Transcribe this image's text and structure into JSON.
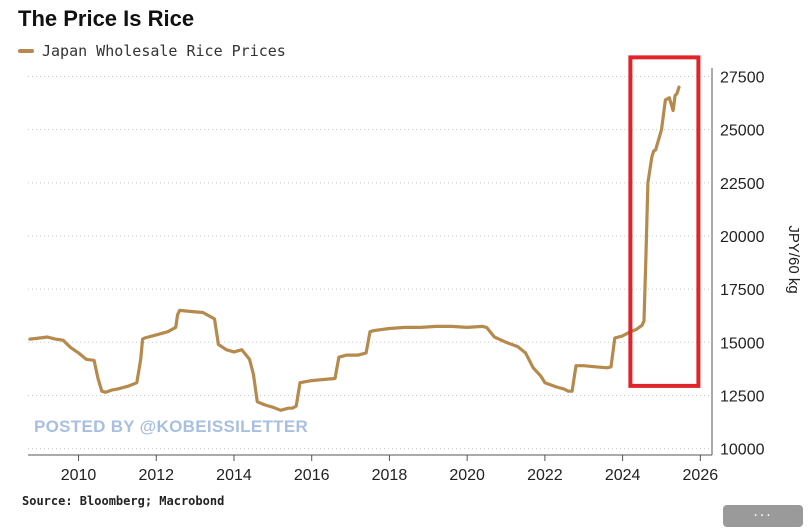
{
  "chart_data": {
    "type": "line",
    "title": "The Price Is Rice",
    "xlabel": "",
    "ylabel": "JPY/60 kg",
    "xlim": [
      2008.7,
      2026.3
    ],
    "ylim": [
      9700,
      27900
    ],
    "grid": true,
    "legend_position": "top-left",
    "x_ticks": [
      2010,
      2012,
      2014,
      2016,
      2018,
      2020,
      2022,
      2024,
      2026
    ],
    "y_ticks": [
      10000,
      12500,
      15000,
      17500,
      20000,
      22500,
      25000,
      27500
    ],
    "series": [
      {
        "name": "Japan Wholesale Rice Prices",
        "color": "#b58a4c",
        "x": [
          2008.75,
          2009.0,
          2009.2,
          2009.4,
          2009.6,
          2009.8,
          2010.0,
          2010.2,
          2010.4,
          2010.5,
          2010.6,
          2010.7,
          2010.85,
          2011.0,
          2011.3,
          2011.5,
          2011.6,
          2011.65,
          2011.7,
          2012.0,
          2012.3,
          2012.5,
          2012.55,
          2012.6,
          2012.9,
          2013.2,
          2013.5,
          2013.6,
          2013.8,
          2014.0,
          2014.2,
          2014.4,
          2014.5,
          2014.6,
          2014.8,
          2015.0,
          2015.2,
          2015.4,
          2015.5,
          2015.6,
          2015.7,
          2016.0,
          2016.3,
          2016.6,
          2016.7,
          2016.9,
          2017.2,
          2017.4,
          2017.5,
          2017.6,
          2018.0,
          2018.4,
          2018.8,
          2019.2,
          2019.6,
          2020.0,
          2020.4,
          2020.5,
          2020.7,
          2021.0,
          2021.3,
          2021.5,
          2021.7,
          2021.9,
          2022.0,
          2022.3,
          2022.5,
          2022.6,
          2022.7,
          2022.8,
          2023.0,
          2023.3,
          2023.6,
          2023.7,
          2023.8,
          2024.0,
          2024.2,
          2024.35,
          2024.5,
          2024.55,
          2024.6,
          2024.65,
          2024.75,
          2024.8,
          2024.85,
          2025.0,
          2025.1,
          2025.2,
          2025.3,
          2025.35,
          2025.4,
          2025.45
        ],
        "values": [
          15150,
          15200,
          15250,
          15150,
          15100,
          14750,
          14500,
          14200,
          14150,
          13300,
          12700,
          12650,
          12750,
          12800,
          12950,
          13100,
          14200,
          15150,
          15200,
          15350,
          15500,
          15700,
          16300,
          16500,
          16450,
          16400,
          16100,
          14900,
          14650,
          14550,
          14650,
          14200,
          13500,
          12200,
          12050,
          11950,
          11800,
          11900,
          11900,
          12000,
          13100,
          13200,
          13250,
          13300,
          14300,
          14400,
          14400,
          14500,
          15500,
          15550,
          15650,
          15700,
          15700,
          15750,
          15750,
          15700,
          15750,
          15700,
          15250,
          15000,
          14800,
          14500,
          13800,
          13400,
          13100,
          12900,
          12800,
          12700,
          12700,
          13900,
          13900,
          13850,
          13800,
          13850,
          15200,
          15300,
          15500,
          15600,
          15800,
          16000,
          19000,
          22500,
          23700,
          24000,
          24050,
          25000,
          26400,
          26500,
          25900,
          26600,
          26700,
          27000
        ]
      }
    ]
  },
  "legend": {
    "label": "Japan Wholesale Rice Prices"
  },
  "annotation": {
    "box_color": "#e0242a",
    "x_range": [
      2024.2,
      2025.95
    ],
    "y_range": [
      12950,
      28400
    ]
  },
  "watermark": {
    "text": "POSTED BY @KOBEISSILETTER",
    "color": "#a9bfe2"
  },
  "source": {
    "text": "Source: Bloomberg; Macrobond"
  },
  "more_button": {
    "label": "···"
  }
}
